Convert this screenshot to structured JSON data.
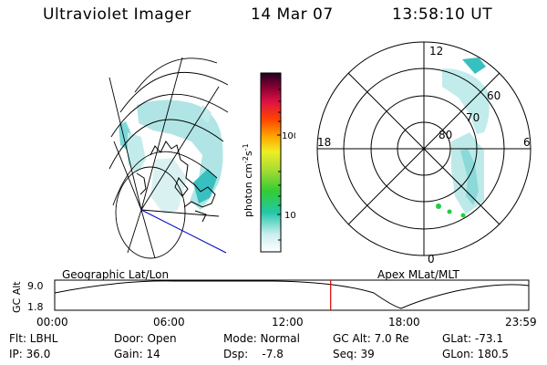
{
  "header": {
    "instrument": "Ultraviolet Imager",
    "date": "14 Mar 07",
    "time": "13:58:10 UT"
  },
  "colorbar": {
    "label": "photon cm",
    "label_sup1": "-2",
    "label_mid": "s",
    "label_sup2": "-1",
    "ticks": [
      "100",
      "10"
    ],
    "scale": "log"
  },
  "polar_plot": {
    "mlt_labels": {
      "top": "12",
      "left": "18",
      "right": "6",
      "bottom": "0"
    },
    "lat_labels": [
      "60",
      "70",
      "80"
    ]
  },
  "timeline": {
    "ylabel": "GC Alt",
    "ticks": [
      "9.0",
      "1.8"
    ],
    "left_title": "Geographic Lat/Lon",
    "right_title": "Apex  MLat/MLT",
    "time_labels": [
      "00:00",
      "06:00",
      "12:00",
      "18:00",
      "23:59"
    ],
    "current_time_fraction": 0.5821
  },
  "info": {
    "flt": "Flt: LBHL",
    "ip": "IP: 36.0",
    "door": "Door: Open",
    "gain": "Gain: 14",
    "mode": "Mode: Normal",
    "dsp": "Dsp:    -7.8",
    "gcalt": "GC Alt: 7.0 Re",
    "seq": "Seq: 39",
    "glat": "GLat: -73.1",
    "glon": "GLon: 180.5"
  },
  "colors": {
    "aurora": "#7fd8d8",
    "aurora_bright": "#38c0c0",
    "cursor": "#e00000",
    "blue_line": "#0000cc",
    "green_dot": "#22cc44"
  }
}
